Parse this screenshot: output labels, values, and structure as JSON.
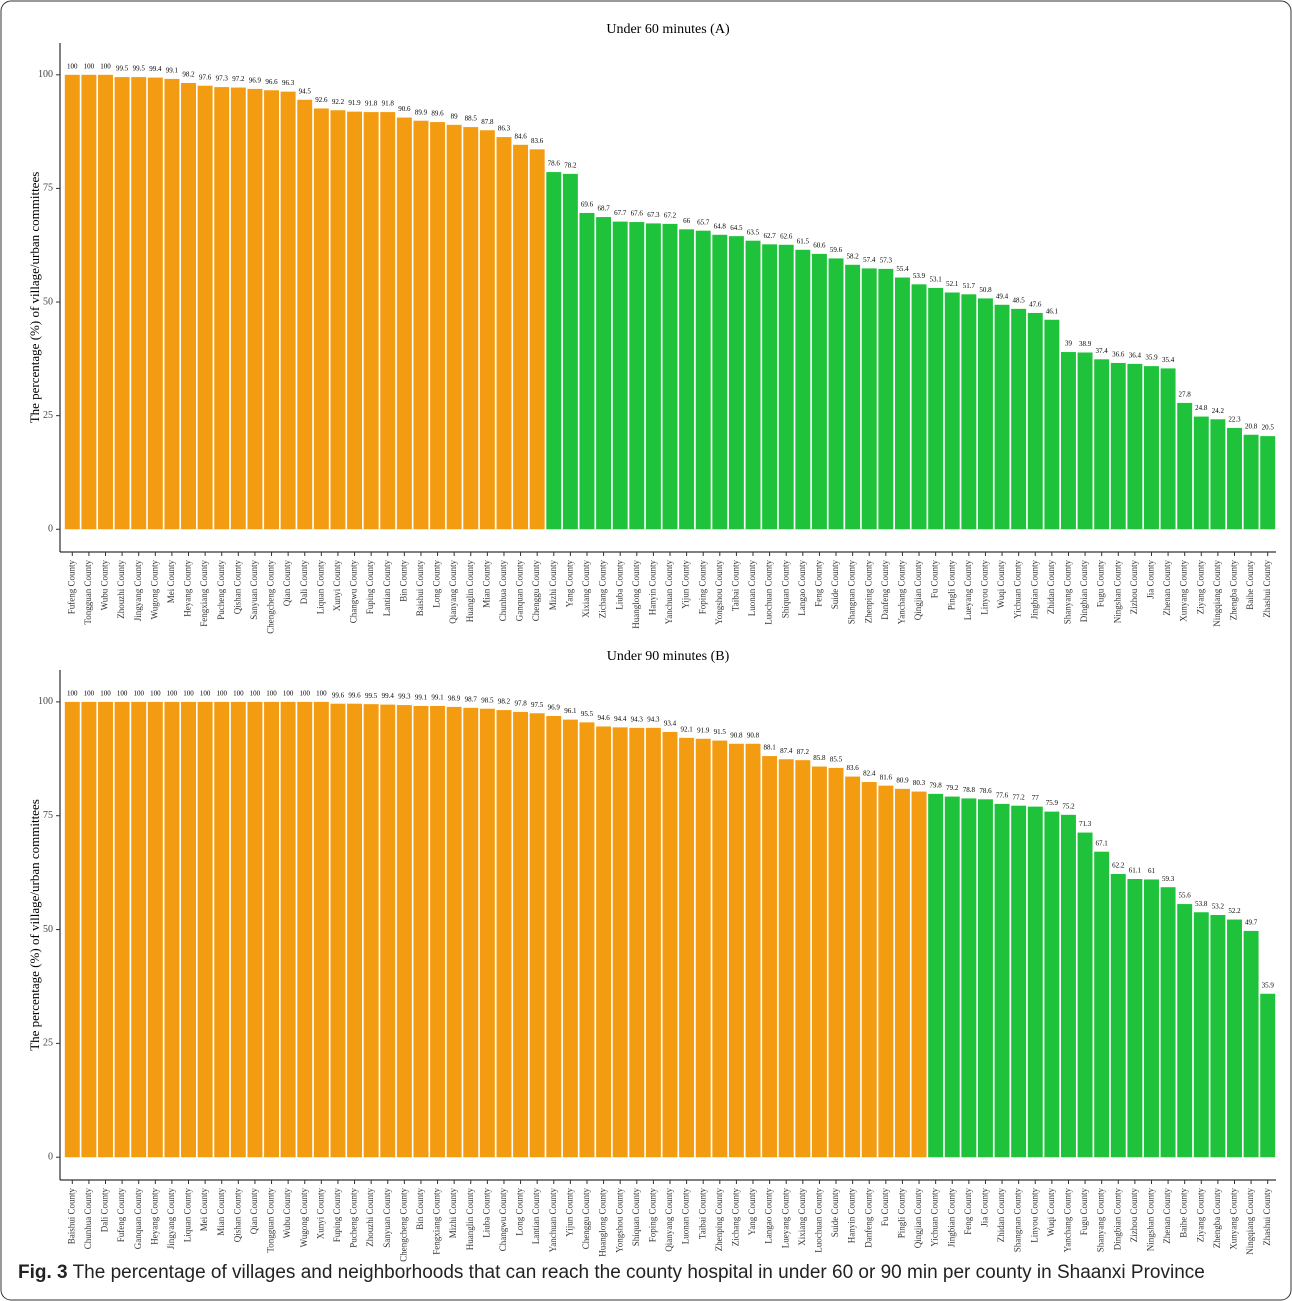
{
  "chart_data": [
    {
      "type": "bar",
      "title": "Under 60 minutes (A)",
      "y_label": "The percentage (%) of village/urban committees",
      "categories": [
        "Fufeng County",
        "Tongguan County",
        "Wubu County",
        "Zhouzhi County",
        "Jingyang County",
        "Wugong County",
        "Mei County",
        "Heyang County",
        "Fengxiang County",
        "Pucheng County",
        "Qishan County",
        "Sanyuan County",
        "Chengcheng County",
        "Qian County",
        "Dali County",
        "Liquan County",
        "Xunyi County",
        "Changwu County",
        "Fuping County",
        "Lantian County",
        "Bin County",
        "Baishui County",
        "Long County",
        "Qianyang County",
        "Huanglin County",
        "Mian County",
        "Chunhua County",
        "Ganquan County",
        "Chenggu County",
        "Mizhi County",
        "Yang County",
        "Xixiang County",
        "Zichang County",
        "Liuba County",
        "Huanglong County",
        "Hanyin County",
        "Yanchuan County",
        "Yijun County",
        "Foping County",
        "Yongshou County",
        "Taibai County",
        "Luonan County",
        "Luochuan County",
        "Shiquan County",
        "Langao County",
        "Feng County",
        "Suide County",
        "Shangnan County",
        "Zhenping County",
        "Danfeng County",
        "Yanchang County",
        "Qingjian County",
        "Fu County",
        "Pingli County",
        "Lueyang County",
        "Linyou County",
        "Wuqi County",
        "Yichuan County",
        "Jingbian County",
        "Zhidan County",
        "Shanyang County",
        "Dingbian County",
        "Fugu County",
        "Ningshan County",
        "Zizhou County",
        "Jia County",
        "Zhenan County",
        "Xunyang County",
        "Ziyang County",
        "Ningqiang County",
        "Zhengba County",
        "Baihe County",
        "Zhashui County"
      ],
      "values": [
        100,
        100,
        100,
        99.5,
        99.5,
        99.4,
        99.1,
        98.2,
        97.6,
        97.3,
        97.2,
        96.9,
        96.6,
        96.3,
        94.5,
        92.6,
        92.2,
        91.9,
        91.8,
        91.8,
        90.6,
        89.9,
        89.6,
        89,
        88.5,
        87.8,
        86.3,
        84.6,
        83.6,
        78.6,
        78.2,
        69.6,
        68.7,
        67.7,
        67.6,
        67.3,
        67.2,
        66,
        65.7,
        64.8,
        64.5,
        63.5,
        62.7,
        62.6,
        61.5,
        60.6,
        59.6,
        58.2,
        57.4,
        57.3,
        55.4,
        53.9,
        53.1,
        52.1,
        51.7,
        50.8,
        49.4,
        48.5,
        47.6,
        46.1,
        39,
        38.9,
        37.4,
        36.6,
        36.4,
        35.9,
        35.4,
        27.8,
        24.8,
        24.2,
        22.3,
        20.8,
        20.5
      ],
      "colors": [
        "#f39c12",
        "#f39c12",
        "#f39c12",
        "#f39c12",
        "#f39c12",
        "#f39c12",
        "#f39c12",
        "#f39c12",
        "#f39c12",
        "#f39c12",
        "#f39c12",
        "#f39c12",
        "#f39c12",
        "#f39c12",
        "#f39c12",
        "#f39c12",
        "#f39c12",
        "#f39c12",
        "#f39c12",
        "#f39c12",
        "#f39c12",
        "#f39c12",
        "#f39c12",
        "#f39c12",
        "#f39c12",
        "#f39c12",
        "#f39c12",
        "#f39c12",
        "#f39c12",
        "#1fc33b",
        "#1fc33b",
        "#1fc33b",
        "#1fc33b",
        "#1fc33b",
        "#1fc33b",
        "#1fc33b",
        "#1fc33b",
        "#1fc33b",
        "#1fc33b",
        "#1fc33b",
        "#1fc33b",
        "#1fc33b",
        "#1fc33b",
        "#1fc33b",
        "#1fc33b",
        "#1fc33b",
        "#1fc33b",
        "#1fc33b",
        "#1fc33b",
        "#1fc33b",
        "#1fc33b",
        "#1fc33b",
        "#1fc33b",
        "#1fc33b",
        "#1fc33b",
        "#1fc33b",
        "#1fc33b",
        "#1fc33b",
        "#1fc33b",
        "#1fc33b",
        "#1fc33b",
        "#1fc33b",
        "#1fc33b",
        "#1fc33b",
        "#1fc33b",
        "#1fc33b",
        "#1fc33b",
        "#1fc33b",
        "#1fc33b",
        "#1fc33b",
        "#1fc33b",
        "#1fc33b",
        "#1fc33b"
      ],
      "ylim": [
        -5,
        107
      ],
      "yticks": [
        0,
        25,
        50,
        75,
        100
      ],
      "grid": false
    },
    {
      "type": "bar",
      "title": "Under 90 minutes (B)",
      "y_label": "The percentage (%) of village/urban committees",
      "categories": [
        "Baishui County",
        "Chunhua County",
        "Dali County",
        "Fufeng County",
        "Ganquan County",
        "Heyang County",
        "Jingyang County",
        "Liquan County",
        "Mei County",
        "Mian County",
        "Qishan County",
        "Qian County",
        "Tongguan County",
        "Wubu County",
        "Wugong County",
        "Xunyi County",
        "Fuping County",
        "Pucheng County",
        "Zhouzhi County",
        "Sanyuan County",
        "Chengcheng County",
        "Bin County",
        "Fengxiang County",
        "Mizhi County",
        "Huanglin County",
        "Liuba County",
        "Changwu County",
        "Long County",
        "Lantian County",
        "Yanchuan County",
        "Yijun County",
        "Chenggu County",
        "Huanglong County",
        "Yongshou County",
        "Shiquan County",
        "Foping County",
        "Qianyang County",
        "Luonan County",
        "Taibai County",
        "Zhenping County",
        "Zichang County",
        "Yang County",
        "Langao County",
        "Lueyang County",
        "Xixiang County",
        "Luochuan County",
        "Suide County",
        "Hanyin County",
        "Danfeng County",
        "Fu County",
        "Pingli County",
        "Qingjian County",
        "Yichuan County",
        "Jingbian County",
        "Feng County",
        "Jia County",
        "Zhidan County",
        "Shangnan County",
        "Linyou County",
        "Wuqi County",
        "Yanchang County",
        "Fugu County",
        "Shanyang County",
        "Dingbian County",
        "Zizhou County",
        "Ningshan County",
        "Zhenan County",
        "Baihe County",
        "Ziyang County",
        "Zhengba County",
        "Xunyang County",
        "Ningqiang County",
        "Zhashui County"
      ],
      "values": [
        100,
        100,
        100,
        100,
        100,
        100,
        100,
        100,
        100,
        100,
        100,
        100,
        100,
        100,
        100,
        100,
        99.6,
        99.6,
        99.5,
        99.4,
        99.3,
        99.1,
        99.1,
        98.9,
        98.7,
        98.5,
        98.2,
        97.8,
        97.5,
        96.9,
        96.1,
        95.5,
        94.6,
        94.4,
        94.3,
        94.3,
        93.4,
        92.1,
        91.9,
        91.5,
        90.8,
        90.8,
        88.1,
        87.4,
        87.2,
        85.8,
        85.5,
        83.6,
        82.4,
        81.6,
        80.9,
        80.3,
        79.8,
        79.2,
        78.8,
        78.6,
        77.6,
        77.2,
        77,
        75.9,
        75.2,
        71.3,
        67.1,
        62.2,
        61.1,
        61,
        59.3,
        55.6,
        53.8,
        53.2,
        52.2,
        49.7,
        35.9
      ],
      "colors": [
        "#f39c12",
        "#f39c12",
        "#f39c12",
        "#f39c12",
        "#f39c12",
        "#f39c12",
        "#f39c12",
        "#f39c12",
        "#f39c12",
        "#f39c12",
        "#f39c12",
        "#f39c12",
        "#f39c12",
        "#f39c12",
        "#f39c12",
        "#f39c12",
        "#f39c12",
        "#f39c12",
        "#f39c12",
        "#f39c12",
        "#f39c12",
        "#f39c12",
        "#f39c12",
        "#f39c12",
        "#f39c12",
        "#f39c12",
        "#f39c12",
        "#f39c12",
        "#f39c12",
        "#f39c12",
        "#f39c12",
        "#f39c12",
        "#f39c12",
        "#f39c12",
        "#f39c12",
        "#f39c12",
        "#f39c12",
        "#f39c12",
        "#f39c12",
        "#f39c12",
        "#f39c12",
        "#f39c12",
        "#f39c12",
        "#f39c12",
        "#f39c12",
        "#f39c12",
        "#f39c12",
        "#f39c12",
        "#f39c12",
        "#f39c12",
        "#f39c12",
        "#f39c12",
        "#1fc33b",
        "#1fc33b",
        "#1fc33b",
        "#1fc33b",
        "#1fc33b",
        "#1fc33b",
        "#1fc33b",
        "#1fc33b",
        "#1fc33b",
        "#1fc33b",
        "#1fc33b",
        "#1fc33b",
        "#1fc33b",
        "#1fc33b",
        "#1fc33b",
        "#1fc33b",
        "#1fc33b",
        "#1fc33b",
        "#1fc33b",
        "#1fc33b",
        "#1fc33b"
      ],
      "ylim": [
        -5,
        107
      ],
      "yticks": [
        0,
        25,
        50,
        75,
        100
      ],
      "grid": false
    }
  ],
  "caption": {
    "label": "Fig. 3",
    "text": "The percentage of villages and neighborhoods that can reach the county hospital in under 60 or 90 min per county in Shaanxi Province"
  }
}
